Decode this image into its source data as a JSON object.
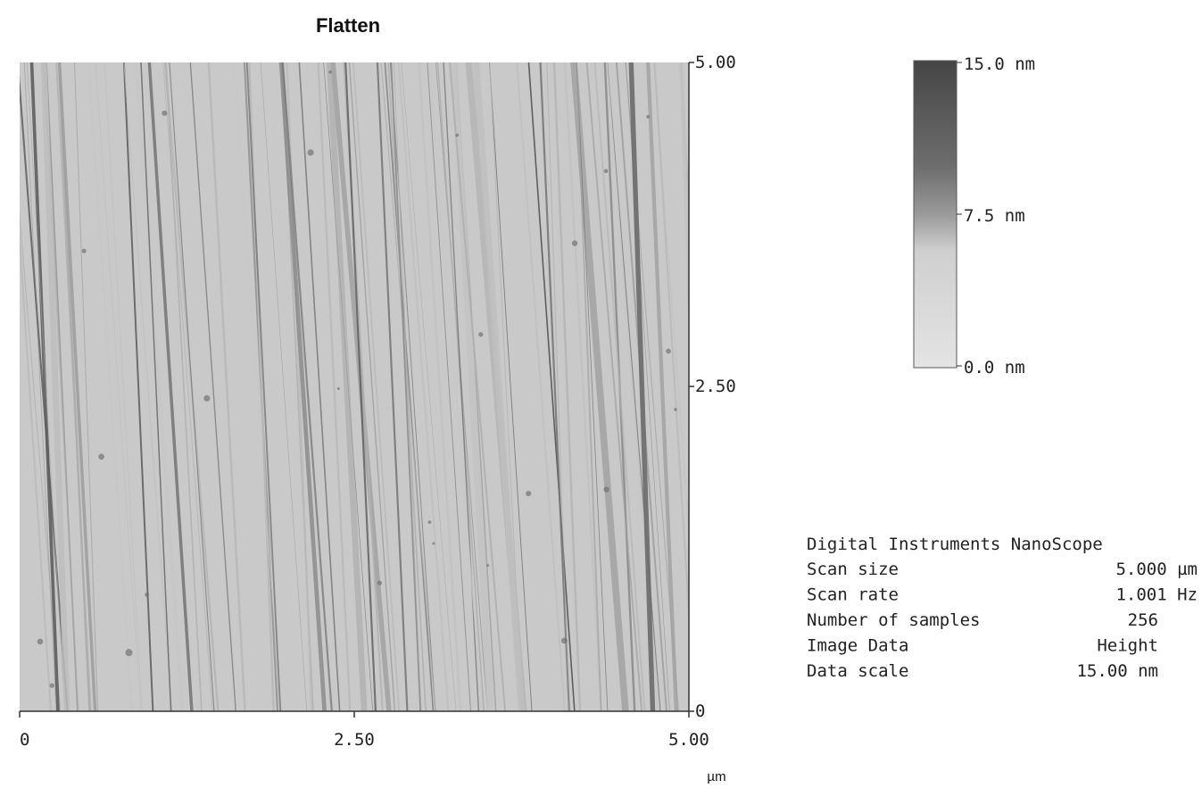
{
  "title": "Flatten",
  "image": {
    "y_ticks": [
      "5.00",
      "2.50",
      "0"
    ],
    "x_ticks": [
      "0",
      "2.50",
      "5.00"
    ],
    "x_unit": "µm"
  },
  "colorbar": {
    "labels": [
      "15.0 nm",
      "7.5 nm",
      "0.0 nm"
    ]
  },
  "info": {
    "header": "Digital Instruments NanoScope",
    "rows": [
      [
        "Scan size",
        "5.000 µm"
      ],
      [
        "Scan rate",
        "1.001 Hz"
      ],
      [
        "Number of samples",
        "256"
      ],
      [
        "Image Data",
        "Height"
      ],
      [
        "Data scale",
        "15.00 nm"
      ]
    ]
  }
}
